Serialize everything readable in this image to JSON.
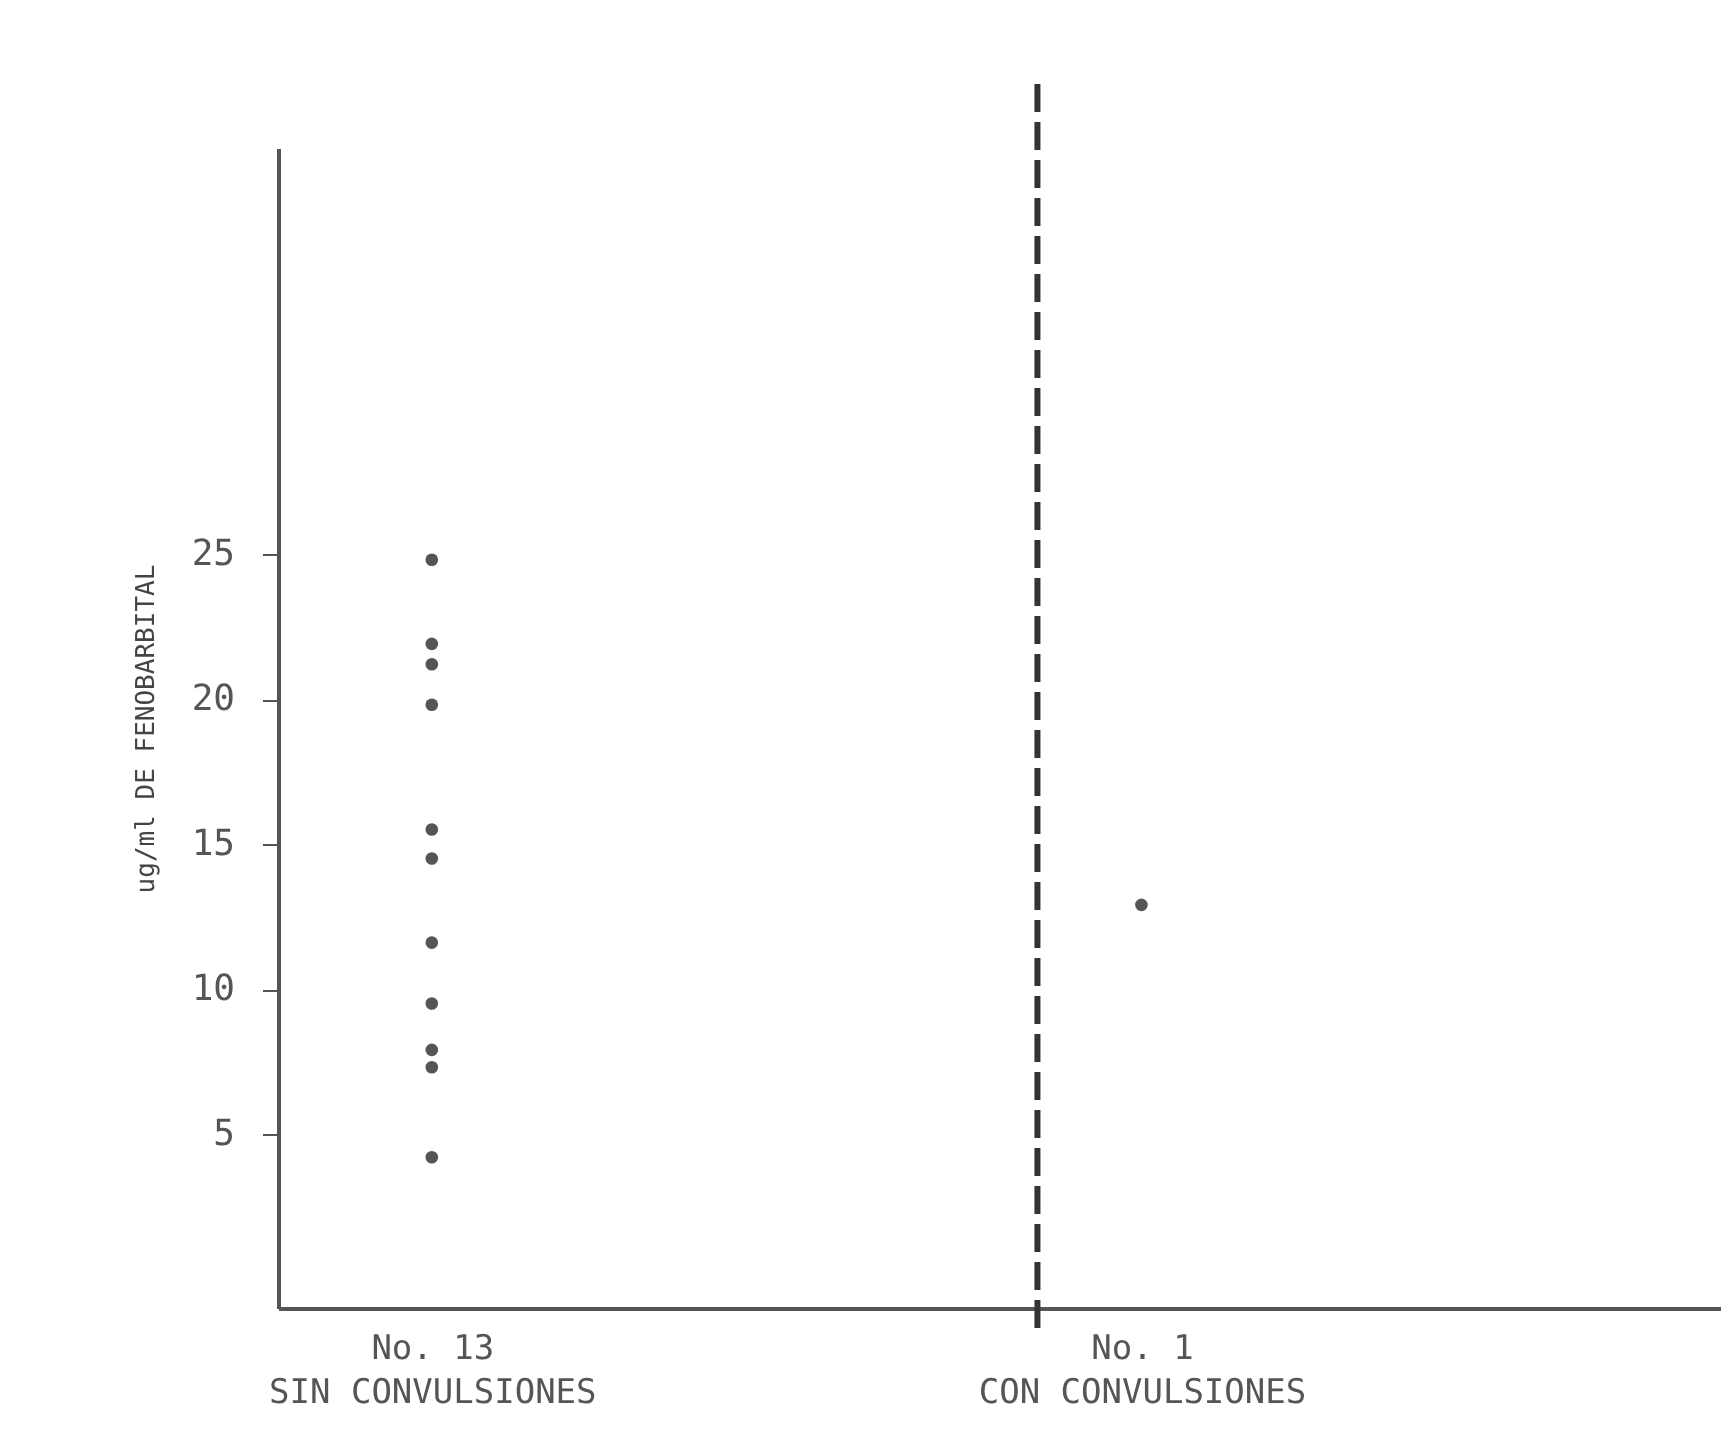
{
  "chart_data": {
    "type": "scatter",
    "ylabel": "ug/ml DE FENOBARBITAL",
    "categories": [
      "No. 13\nSIN CONVULSIONES",
      "No. 1\nCON CONVULSIONES"
    ],
    "series": [
      {
        "color": "#555555",
        "x": [
          "No. 13\nSIN CONVULSIONES",
          "No. 13\nSIN CONVULSIONES",
          "No. 13\nSIN CONVULSIONES",
          "No. 13\nSIN CONVULSIONES",
          "No. 13\nSIN CONVULSIONES",
          "No. 13\nSIN CONVULSIONES",
          "No. 13\nSIN CONVULSIONES",
          "No. 13\nSIN CONVULSIONES",
          "No. 13\nSIN CONVULSIONES",
          "No. 13\nSIN CONVULSIONES",
          "No. 13\nSIN CONVULSIONES",
          "No. 1\nCON CONVULSIONES"
        ],
        "values": [
          24.8,
          21.9,
          21.2,
          19.8,
          15.5,
          14.5,
          11.6,
          9.5,
          7.9,
          7.3,
          4.2,
          12.9
        ]
      }
    ],
    "ylim": [
      -1,
      39
    ],
    "yticks": [
      5,
      10,
      15,
      20,
      25
    ],
    "grid": false,
    "marker": "circle",
    "ref_lines": [
      {
        "axis": "x",
        "value": "No. 1\nCON CONVULSIONES",
        "color": "#333333",
        "line_style": "dashed"
      }
    ]
  }
}
